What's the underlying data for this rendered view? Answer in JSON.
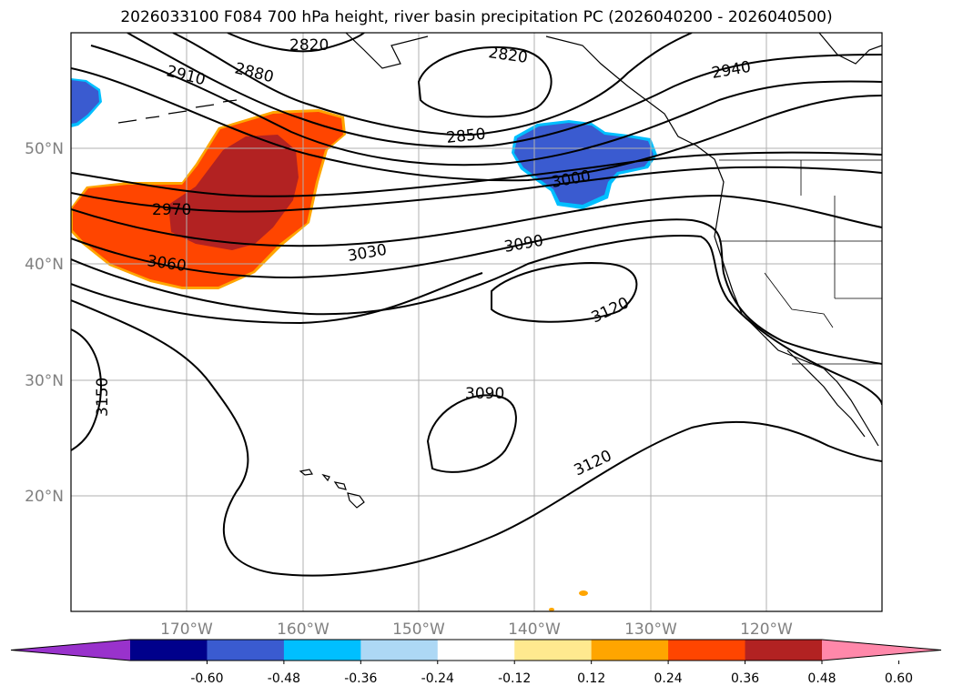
{
  "title": "2026033100 F084 700 hPa height, river basin precipitation PC (2026040200 - 2026040500)",
  "latitude_labels": [
    "50°N",
    "40°N",
    "30°N",
    "20°N"
  ],
  "longitude_labels": [
    "170°W",
    "160°W",
    "150°W",
    "140°W",
    "130°W",
    "120°W"
  ],
  "contour_labels": [
    "2820",
    "2820",
    "2910",
    "2880",
    "2940",
    "2850",
    "3000",
    "2970",
    "3030",
    "3090",
    "3060",
    "3120",
    "3150",
    "3090",
    "3120"
  ],
  "colorbar": {
    "ticks": [
      "-0.60",
      "-0.48",
      "-0.36",
      "-0.24",
      "-0.12",
      "0.12",
      "0.24",
      "0.36",
      "0.48",
      "0.60"
    ],
    "colors": [
      "#9932cc",
      "#00008b",
      "#3a5bd0",
      "#00bfff",
      "#add8f5",
      "#ffffff",
      "#ffe98f",
      "#ffa500",
      "#ff4500",
      "#b22222",
      "#ff88aa"
    ]
  },
  "colors": {
    "positive_strong": "#b22222",
    "positive": "#ff4500",
    "positive_weak": "#ffa500",
    "negative": "#3a5bd0",
    "negative_weak": "#00bfff",
    "contour_line": "#000000",
    "gridline": "#b0b0b0"
  }
}
